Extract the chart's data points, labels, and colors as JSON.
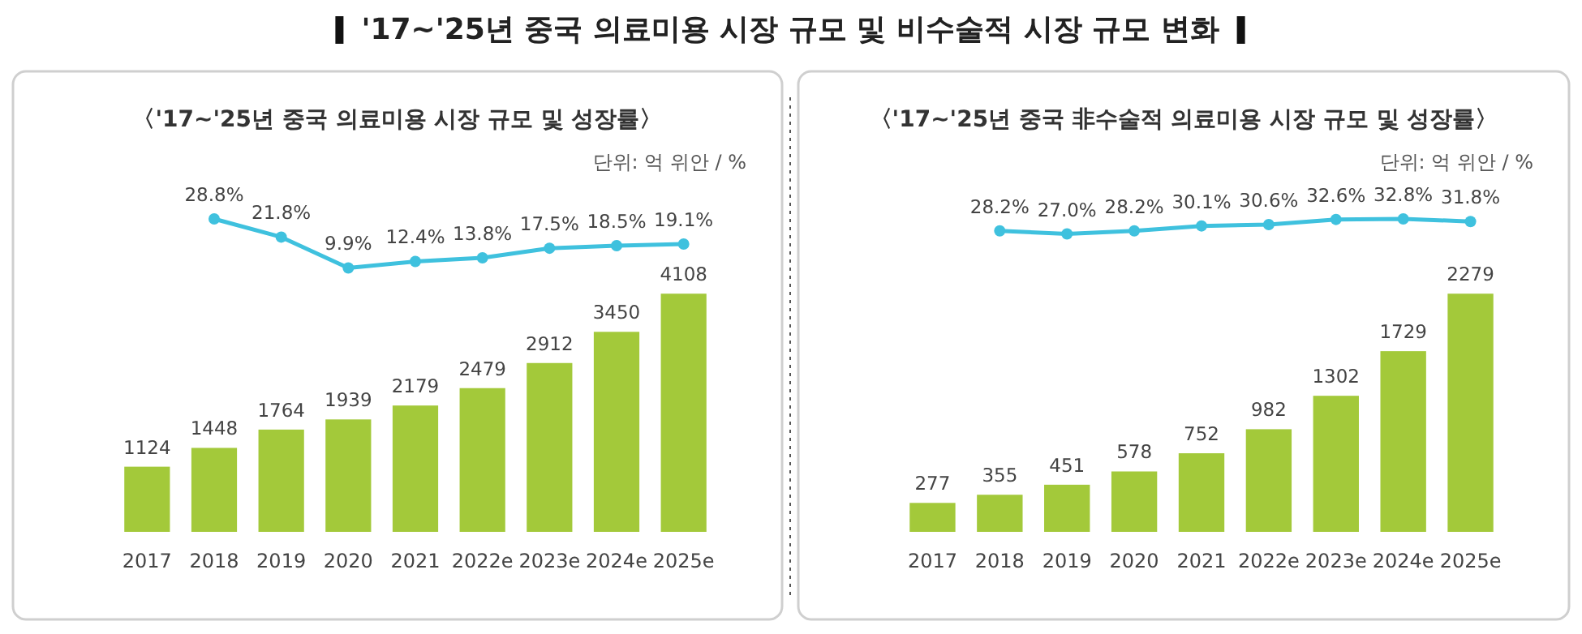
{
  "chart_data": [
    {
      "type": "line",
      "title": "'17~'25년 중국 의료미용 시장 규모 및 비수술적 시장 규모 변화",
      "subtitle": "〈'17~'25년 중국 의료미용 시장 규모 및 성장률〉",
      "annotations": [
        "단위: 억 위안 / %"
      ],
      "categories": [
        null,
        null,
        null,
        null,
        null,
        null,
        null,
        null,
        null
      ],
      "series": [
        {
          "color": "#3fc1de",
          "values": [
            null,
            28.8,
            21.8,
            9.9,
            12.4,
            13.8,
            17.5,
            18.5,
            19.1
          ],
          "value_labels": [
            null,
            "28.8%",
            "21.8%",
            "9.9%",
            "12.4%",
            "13.8%",
            "17.5%",
            "18.5%",
            "19.1%"
          ]
        }
      ],
      "tick_labels": false,
      "marker": "circle"
    },
    {
      "type": "bar",
      "categories": [
        "2017",
        "2018",
        "2019",
        "2020",
        "2021",
        "2022e",
        "2023e",
        "2024e",
        "2025e"
      ],
      "series": [
        {
          "color": "#a3c93a",
          "values": [
            1124,
            1448,
            1764,
            1939,
            2179,
            2479,
            2912,
            3450,
            4108
          ]
        }
      ],
      "data_labels": true,
      "tick_labels": "x"
    },
    {
      "type": "line",
      "subtitle": "〈'17~'25년 중국 非수술적 의료미용 시장 규모 및 성장률〉",
      "annotations": [
        "단위: 억 위안 / %"
      ],
      "categories": [
        null,
        null,
        null,
        null,
        null,
        null,
        null,
        null,
        null
      ],
      "series": [
        {
          "color": "#3fc1de",
          "values": [
            null,
            28.2,
            27.0,
            28.2,
            30.1,
            30.6,
            32.6,
            32.8,
            31.8
          ],
          "value_labels": [
            null,
            "28.2%",
            "27.0%",
            "28.2%",
            "30.1%",
            "30.6%",
            "32.6%",
            "32.8%",
            "31.8%"
          ]
        }
      ],
      "tick_labels": false,
      "marker": "circle"
    },
    {
      "type": "bar",
      "categories": [
        "2017",
        "2018",
        "2019",
        "2020",
        "2021",
        "2022e",
        "2023e",
        "2024e",
        "2025e"
      ],
      "series": [
        {
          "color": "#a3c93a",
          "values": [
            277,
            355,
            451,
            578,
            752,
            982,
            1302,
            1729,
            2279
          ]
        }
      ],
      "data_labels": true,
      "tick_labels": "x"
    }
  ]
}
